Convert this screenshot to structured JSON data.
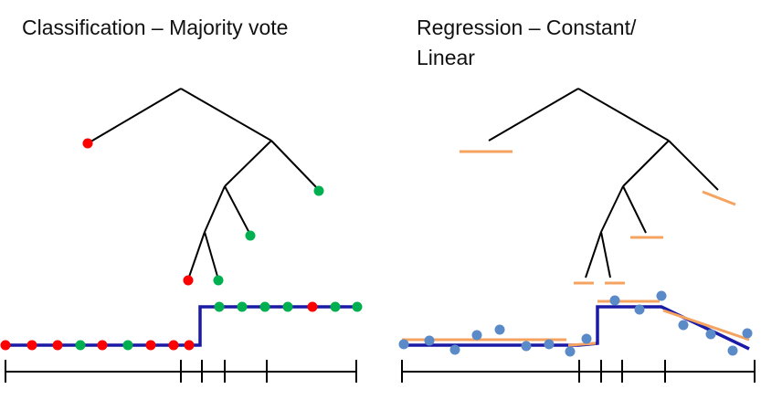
{
  "left_panel": {
    "title": "Classification – Majority vote"
  },
  "right_panel": {
    "title_line1": "Regression – Constant/",
    "title_line2": "Linear"
  },
  "colors": {
    "class_red": "#ff0000",
    "class_green": "#00b050",
    "fit_blue": "#1a1aa6",
    "regression_orange": "#f4a460",
    "data_point_blue": "#5b8ac8",
    "tree_line": "#000000"
  },
  "classification_points": [
    "red",
    "red",
    "red",
    "green",
    "red",
    "green",
    "red",
    "red",
    "red",
    "green",
    "green",
    "green",
    "green",
    "red",
    "green",
    "green"
  ]
}
